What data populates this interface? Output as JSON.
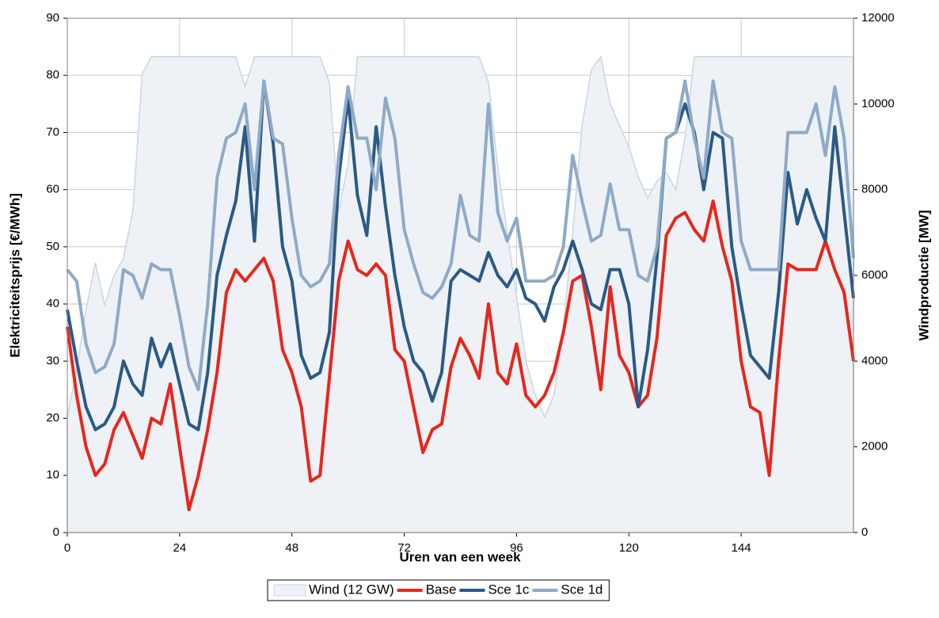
{
  "chart_data": {
    "type": "combo",
    "x_label": "Uren van een week",
    "y_label": "Elektriciteitsprijs [€/MWh]",
    "y2_label": "Windproductie [MW]",
    "x": [
      0,
      2,
      4,
      6,
      8,
      10,
      12,
      14,
      16,
      18,
      20,
      22,
      24,
      26,
      28,
      30,
      32,
      34,
      36,
      38,
      40,
      42,
      44,
      46,
      48,
      50,
      52,
      54,
      56,
      58,
      60,
      62,
      64,
      66,
      68,
      70,
      72,
      74,
      76,
      78,
      80,
      82,
      84,
      86,
      88,
      90,
      92,
      94,
      96,
      98,
      100,
      102,
      104,
      106,
      108,
      110,
      112,
      114,
      116,
      118,
      120,
      122,
      124,
      126,
      128,
      130,
      132,
      134,
      136,
      138,
      140,
      142,
      144,
      146,
      148,
      150,
      152,
      154,
      156,
      158,
      160,
      162,
      164,
      166,
      168
    ],
    "xlim": [
      0,
      168
    ],
    "xticks": [
      0,
      24,
      48,
      72,
      96,
      120,
      144
    ],
    "ylim": [
      0,
      90
    ],
    "yticks": [
      0,
      10,
      20,
      30,
      40,
      50,
      60,
      70,
      80,
      90
    ],
    "y2lim": [
      0,
      12000
    ],
    "y2ticks": [
      0,
      2000,
      4000,
      6000,
      8000,
      10000,
      12000
    ],
    "grid": true,
    "legend": "bottom",
    "series": [
      {
        "name": "Wind (12 GW)",
        "type": "area",
        "axis": "y2",
        "color": "#eef2f6",
        "stroke": "#c8d6e4",
        "values": [
          2700,
          3800,
          5200,
          6300,
          5300,
          6000,
          6400,
          7500,
          10700,
          11100,
          11100,
          11100,
          11100,
          11100,
          11100,
          11100,
          11100,
          11100,
          11100,
          10400,
          11100,
          11100,
          11100,
          11100,
          11100,
          11100,
          11100,
          11100,
          10500,
          7500,
          8600,
          11100,
          11100,
          11100,
          11100,
          11100,
          11100,
          11100,
          11100,
          11100,
          11100,
          11100,
          11100,
          11100,
          11100,
          10500,
          8500,
          7000,
          5500,
          4000,
          3200,
          2700,
          3200,
          4800,
          7000,
          9500,
          10800,
          11100,
          10000,
          9500,
          9000,
          8300,
          7800,
          8200,
          8400,
          8000,
          9200,
          11100,
          11100,
          11100,
          11100,
          11100,
          11100,
          11100,
          11100,
          11100,
          11100,
          11100,
          11100,
          11100,
          11100,
          11100,
          11100,
          11100,
          11100
        ]
      },
      {
        "name": "Base",
        "type": "line",
        "color": "#e8261b",
        "values": [
          36,
          24,
          15,
          10,
          12,
          18,
          21,
          17,
          13,
          20,
          19,
          26,
          15,
          4,
          10,
          18,
          28,
          42,
          46,
          44,
          46,
          48,
          44,
          32,
          28,
          22,
          9,
          10,
          27,
          44,
          51,
          46,
          45,
          47,
          45,
          32,
          30,
          22,
          14,
          18,
          19,
          29,
          34,
          31,
          27,
          40,
          28,
          26,
          33,
          24,
          22,
          24,
          28,
          35,
          44,
          45,
          36,
          25,
          43,
          31,
          28,
          22,
          24,
          34,
          52,
          55,
          56,
          53,
          51,
          58,
          50,
          44,
          30,
          22,
          21,
          10,
          30,
          47,
          46,
          46,
          46,
          51,
          46,
          42,
          30
        ]
      },
      {
        "name": "Sce 1c",
        "type": "line",
        "color": "#2a5a86",
        "values": [
          39,
          30,
          22,
          18,
          19,
          22,
          30,
          26,
          24,
          34,
          29,
          33,
          26,
          19,
          18,
          28,
          45,
          52,
          58,
          71,
          51,
          79,
          68,
          50,
          44,
          31,
          27,
          28,
          35,
          62,
          76,
          59,
          52,
          71,
          57,
          45,
          36,
          30,
          28,
          23,
          28,
          44,
          46,
          45,
          44,
          49,
          45,
          43,
          46,
          41,
          40,
          37,
          43,
          46,
          51,
          46,
          40,
          39,
          46,
          46,
          40,
          22,
          32,
          48,
          69,
          70,
          75,
          70,
          60,
          70,
          69,
          50,
          40,
          31,
          29,
          27,
          42,
          63,
          54,
          60,
          55,
          51,
          71,
          56,
          41
        ]
      },
      {
        "name": "Sce 1d",
        "type": "line",
        "color": "#8eaac8",
        "values": [
          46,
          44,
          33,
          28,
          29,
          33,
          46,
          45,
          41,
          47,
          46,
          46,
          38,
          29,
          25,
          40,
          62,
          69,
          70,
          75,
          60,
          79,
          69,
          68,
          55,
          45,
          43,
          44,
          47,
          66,
          78,
          69,
          69,
          60,
          76,
          69,
          53,
          47,
          42,
          41,
          43,
          47,
          59,
          52,
          51,
          75,
          56,
          51,
          55,
          44,
          44,
          44,
          45,
          50,
          66,
          58,
          51,
          52,
          61,
          53,
          53,
          45,
          44,
          50,
          69,
          70,
          79,
          69,
          62,
          79,
          70,
          69,
          51,
          46,
          46,
          46,
          46,
          70,
          70,
          70,
          75,
          66,
          78,
          69,
          48
        ]
      }
    ]
  }
}
